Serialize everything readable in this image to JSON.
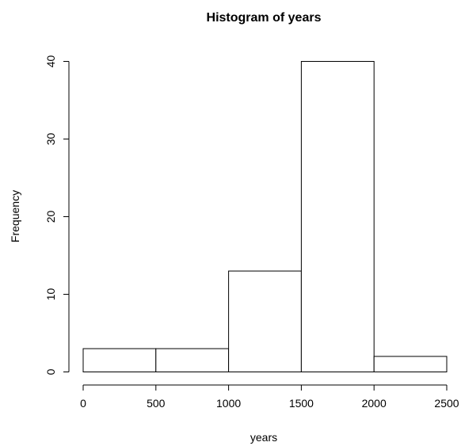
{
  "chart_data": {
    "type": "bar",
    "title": "Histogram of years",
    "xlabel": "years",
    "ylabel": "Frequency",
    "bins": [
      {
        "start": 0,
        "end": 500,
        "count": 3
      },
      {
        "start": 500,
        "end": 1000,
        "count": 3
      },
      {
        "start": 1000,
        "end": 1500,
        "count": 13
      },
      {
        "start": 1500,
        "end": 2000,
        "count": 40
      },
      {
        "start": 2000,
        "end": 2500,
        "count": 2
      }
    ],
    "xlim": [
      0,
      2500
    ],
    "ylim": [
      0,
      40
    ],
    "x_ticks": [
      "0",
      "500",
      "1000",
      "1500",
      "2000",
      "2500"
    ],
    "y_ticks": [
      "0",
      "10",
      "20",
      "30",
      "40"
    ],
    "grid": false,
    "legend": "none"
  }
}
